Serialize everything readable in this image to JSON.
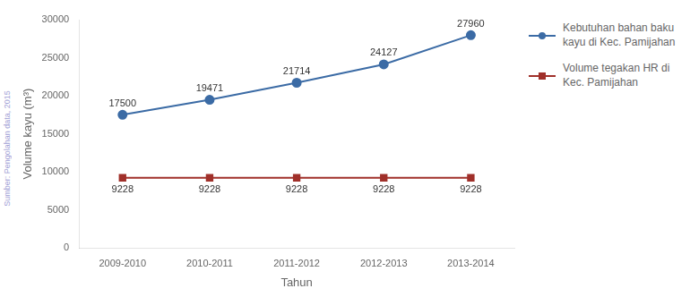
{
  "chart_data": {
    "type": "line",
    "xlabel": "Tahun",
    "ylabel": "Volume kayu (m³)",
    "annotations": [
      "Sumber: Pengolahan data, 2015"
    ],
    "categories": [
      "2009-2010",
      "2010-2011",
      "2011-2012",
      "2012-2013",
      "2013-2014"
    ],
    "series": [
      {
        "name": "Kebutuhan bahan baku\nkayu di Kec. Pamijahan",
        "color": "#3B6BA5",
        "marker": "circle",
        "values": [
          17500,
          19471,
          21714,
          24127,
          27960
        ]
      },
      {
        "name": "Volume tegakan HR di\nKec. Pamijahan",
        "color": "#A0302A",
        "marker": "square",
        "values": [
          9228,
          9228,
          9228,
          9228,
          9228
        ]
      }
    ],
    "ylim": [
      0,
      30000
    ],
    "yticks": [
      0,
      5000,
      10000,
      15000,
      20000,
      25000,
      30000
    ],
    "grid": false,
    "legend": "right",
    "data_labels": true
  }
}
